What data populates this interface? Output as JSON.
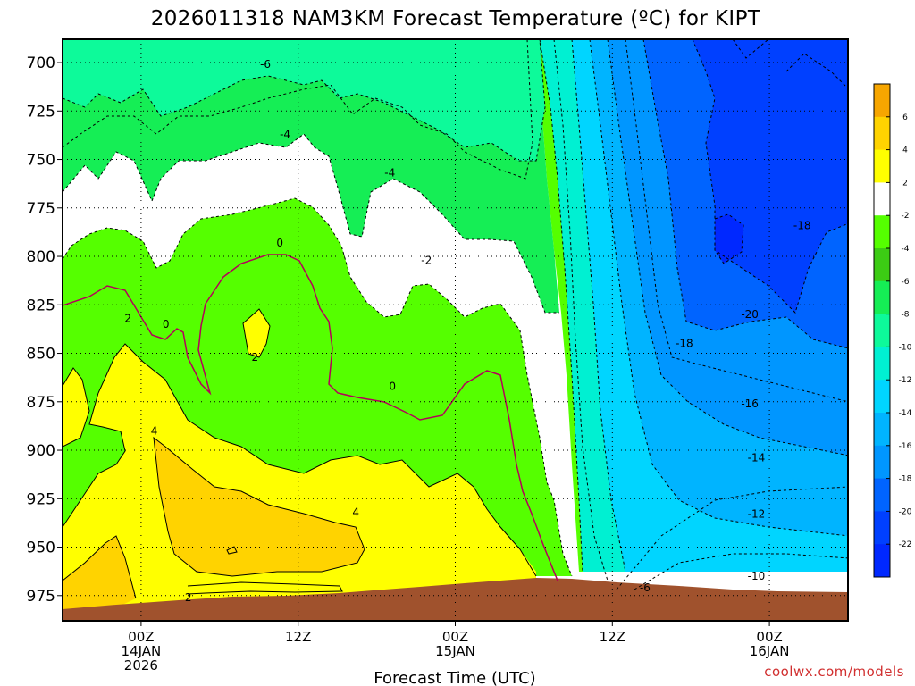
{
  "chart_data": {
    "type": "heatmap",
    "title": "2026011318 NAM3KM Forecast Temperature (ºC) for KIPT",
    "xlabel": "Forecast Time (UTC)",
    "credit": "coolwx.com/models",
    "y_ticks": [
      "700",
      "725",
      "750",
      "775",
      "800",
      "825",
      "850",
      "875",
      "900",
      "925",
      "950",
      "975"
    ],
    "y_values": [
      700,
      725,
      750,
      775,
      800,
      825,
      850,
      875,
      900,
      925,
      950,
      975
    ],
    "ylim": [
      688,
      988
    ],
    "xlim": [
      -6,
      54
    ],
    "x_ticks": [
      {
        "hour": 0,
        "lines": [
          "00Z",
          "14JAN",
          "2026"
        ]
      },
      {
        "hour": 12,
        "lines": [
          "12Z"
        ]
      },
      {
        "hour": 24,
        "lines": [
          "00Z",
          "15JAN"
        ]
      },
      {
        "hour": 36,
        "lines": [
          "12Z"
        ]
      },
      {
        "hour": 48,
        "lines": [
          "00Z",
          "16JAN"
        ]
      }
    ],
    "grid": true,
    "colorbar": {
      "levels": [
        "6",
        "4",
        "2",
        "-2",
        "-4",
        "-6",
        "-8",
        "-10",
        "-12",
        "-14",
        "-16",
        "-18",
        "-20",
        "-22"
      ],
      "colors": [
        "#f7a600",
        "#ffd300",
        "#ffff00",
        "#ffffff",
        "#55ff00",
        "#3ccc14",
        "#15ee55",
        "#0dfa9a",
        "#00f0d2",
        "#00d5ff",
        "#00b4ff",
        "#0096ff",
        "#0064ff",
        "#0040ff",
        "#0028ff"
      ]
    },
    "contour_labels": [
      {
        "text": "-6",
        "hour": 9.5,
        "p": 701
      },
      {
        "text": "-4",
        "hour": 11,
        "p": 737
      },
      {
        "text": "-4",
        "hour": 19,
        "p": 757
      },
      {
        "text": "-2",
        "hour": 21.8,
        "p": 802
      },
      {
        "text": "0",
        "hour": 10.6,
        "p": 793
      },
      {
        "text": "0",
        "hour": 1.9,
        "p": 835
      },
      {
        "text": "0",
        "hour": 19.2,
        "p": 867
      },
      {
        "text": "2",
        "hour": -1,
        "p": 832
      },
      {
        "text": "2",
        "hour": 3.6,
        "p": 976
      },
      {
        "text": "2",
        "hour": 8.7,
        "p": 852
      },
      {
        "text": "4",
        "hour": 1,
        "p": 890
      },
      {
        "text": "4",
        "hour": 16.4,
        "p": 932
      },
      {
        "text": "-6",
        "hour": 38.5,
        "p": 971
      },
      {
        "text": "-10",
        "hour": 47,
        "p": 965
      },
      {
        "text": "-12",
        "hour": 47,
        "p": 933
      },
      {
        "text": "-14",
        "hour": 47,
        "p": 904
      },
      {
        "text": "-16",
        "hour": 46.5,
        "p": 876
      },
      {
        "text": "-18",
        "hour": 41.5,
        "p": 845
      },
      {
        "text": "-20",
        "hour": 46.5,
        "p": 830
      },
      {
        "text": "-18",
        "hour": 50.5,
        "p": 784
      }
    ]
  }
}
